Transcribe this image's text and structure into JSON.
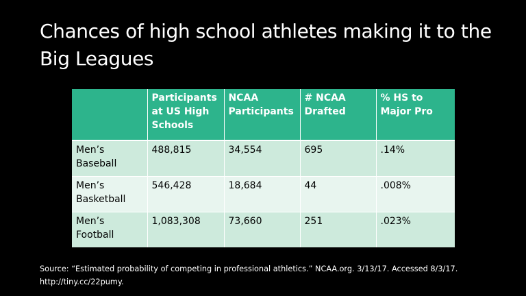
{
  "slide": {
    "title": "Chances of high school athletes making it to the Big Leagues",
    "source": "Source: “Estimated probability of competing in professional athletics.” NCAA.org. 3/13/17. Accessed 8/3/17. http://tiny.cc/22pumy."
  },
  "table": {
    "headers": [
      "",
      "Participants at US High Schools",
      "NCAA Participants",
      "# NCAA Drafted",
      "% HS to Major Pro"
    ],
    "rows": [
      [
        "Men’s Baseball",
        "488,815",
        "34,554",
        "695",
        ".14%"
      ],
      [
        "Men’s Basketball",
        "546,428",
        "18,684",
        "44",
        ".008%"
      ],
      [
        "Men’s Football",
        "1,083,308",
        "73,660",
        "251",
        ".023%"
      ]
    ]
  },
  "colors": {
    "background": "#000000",
    "header_fill": "#2db48c",
    "row_fill_odd": "#cdeadc",
    "row_fill_even": "#e8f5ef"
  }
}
